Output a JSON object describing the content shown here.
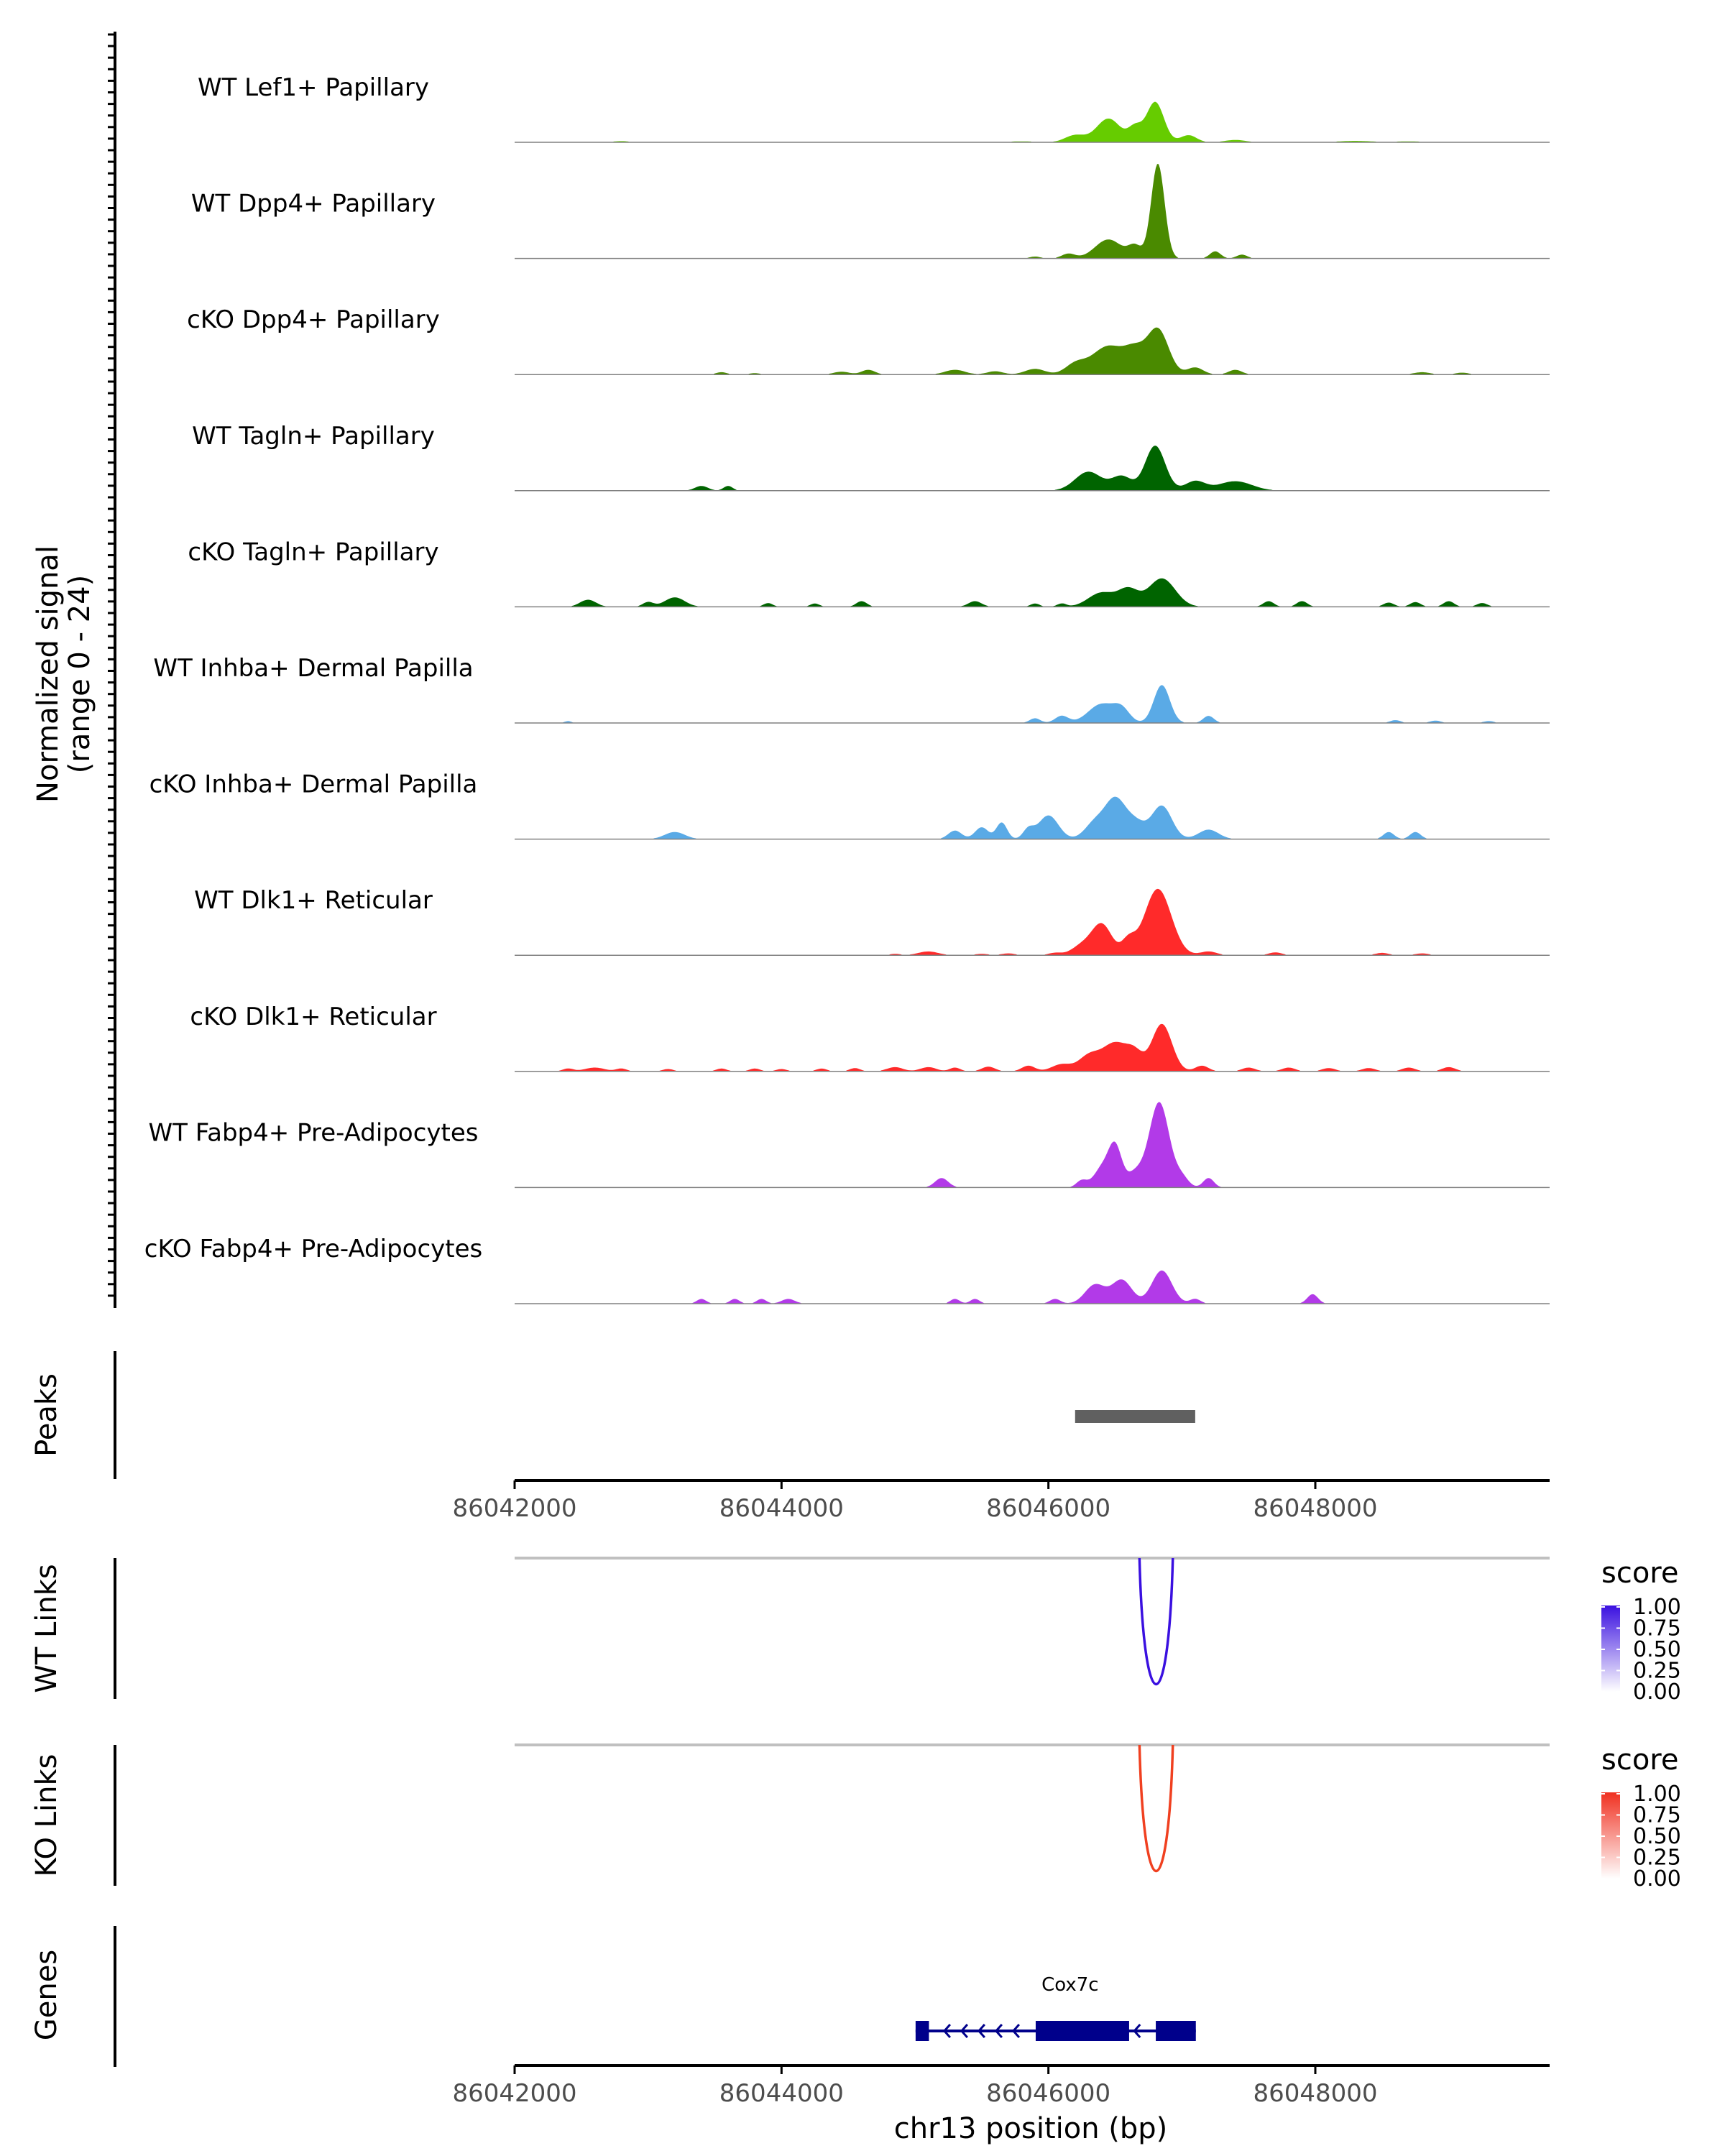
{
  "chart_data": {
    "type": "area",
    "chromosome": "chr13",
    "xlim": [
      86041950,
      86049700
    ],
    "xticks": [
      86042000,
      86044000,
      86046000,
      86048000
    ],
    "xtick_labels": [
      "86042000",
      "86044000",
      "86046000",
      "86048000"
    ],
    "xlabel": "chr13 position (bp)",
    "coverage": {
      "ylabel": "Normalized signal",
      "ylabel_range": "(range 0 - 24)",
      "ylim": [
        0,
        24
      ],
      "tracks": [
        {
          "label": "WT Lef1+ Papillary",
          "color": "#66cc00",
          "peaks": [
            [
              86042800,
              0.25,
              120
            ],
            [
              86043200,
              0.15,
              100
            ],
            [
              86045800,
              0.2,
              200
            ],
            [
              86046200,
              1.5,
              150
            ],
            [
              86046450,
              5,
              180
            ],
            [
              86046650,
              3,
              100
            ],
            [
              86046800,
              8.5,
              130
            ],
            [
              86047050,
              1.5,
              120
            ],
            [
              86047400,
              0.5,
              150
            ],
            [
              86048300,
              0.3,
              250
            ],
            [
              86048700,
              0.2,
              200
            ]
          ]
        },
        {
          "label": "WT Dpp4+ Papillary",
          "color": "#4a8a00",
          "peaks": [
            [
              86045900,
              0.4,
              80
            ],
            [
              86046150,
              1.0,
              100
            ],
            [
              86046450,
              4.0,
              200
            ],
            [
              86046650,
              2.5,
              100
            ],
            [
              86046820,
              20,
              100
            ],
            [
              86047250,
              1.5,
              80
            ],
            [
              86047450,
              0.8,
              80
            ]
          ]
        },
        {
          "label": "cKO Dpp4+ Papillary",
          "color": "#4a8a00",
          "peaks": [
            [
              86043550,
              0.5,
              80
            ],
            [
              86043800,
              0.3,
              80
            ],
            [
              86044450,
              0.6,
              120
            ],
            [
              86044650,
              1.0,
              100
            ],
            [
              86045300,
              1.0,
              150
            ],
            [
              86045600,
              0.7,
              120
            ],
            [
              86045900,
              1.2,
              150
            ],
            [
              86046200,
              2.0,
              150
            ],
            [
              86046450,
              6.0,
              250
            ],
            [
              86046650,
              4.0,
              150
            ],
            [
              86046820,
              9.5,
              160
            ],
            [
              86047100,
              1.5,
              120
            ],
            [
              86047400,
              1.0,
              100
            ],
            [
              86048800,
              0.5,
              120
            ],
            [
              86049100,
              0.4,
              100
            ]
          ]
        },
        {
          "label": "WT Tagln+ Papillary",
          "color": "#006400",
          "peaks": [
            [
              86043400,
              1.0,
              100
            ],
            [
              86043600,
              1.0,
              70
            ],
            [
              86046300,
              4.0,
              200
            ],
            [
              86046550,
              3.0,
              150
            ],
            [
              86046800,
              9.5,
              150
            ],
            [
              86047100,
              2.0,
              150
            ],
            [
              86047400,
              2.0,
              250
            ]
          ]
        },
        {
          "label": "cKO Tagln+ Papillary",
          "color": "#006400",
          "peaks": [
            [
              86042550,
              1.5,
              120
            ],
            [
              86043000,
              1.0,
              80
            ],
            [
              86043200,
              2.0,
              150
            ],
            [
              86043900,
              0.8,
              70
            ],
            [
              86044250,
              0.7,
              70
            ],
            [
              86044600,
              1.2,
              80
            ],
            [
              86045450,
              1.2,
              100
            ],
            [
              86045900,
              0.7,
              70
            ],
            [
              86046100,
              0.7,
              70
            ],
            [
              86046400,
              3.0,
              200
            ],
            [
              86046600,
              3.5,
              150
            ],
            [
              86046850,
              6.0,
              200
            ],
            [
              86047650,
              1.2,
              80
            ],
            [
              86047900,
              1.2,
              80
            ],
            [
              86048550,
              0.9,
              80
            ],
            [
              86048750,
              1.0,
              80
            ],
            [
              86049000,
              1.2,
              80
            ],
            [
              86049250,
              0.8,
              80
            ]
          ]
        },
        {
          "label": "WT Inhba+ Dermal Papilla",
          "color": "#5aaae6",
          "peaks": [
            [
              86042400,
              0.4,
              50
            ],
            [
              86045900,
              1.0,
              80
            ],
            [
              86046100,
              1.5,
              100
            ],
            [
              86046400,
              4.0,
              200
            ],
            [
              86046550,
              2.5,
              120
            ],
            [
              86046850,
              8.0,
              120
            ],
            [
              86047200,
              1.5,
              80
            ],
            [
              86048600,
              0.6,
              80
            ],
            [
              86048900,
              0.5,
              80
            ],
            [
              86049300,
              0.4,
              80
            ]
          ]
        },
        {
          "label": "cKO Inhba+ Dermal Papilla",
          "color": "#5aaae6",
          "peaks": [
            [
              86043200,
              1.5,
              150
            ],
            [
              86045300,
              1.8,
              100
            ],
            [
              86045500,
              2.5,
              100
            ],
            [
              86045650,
              3.5,
              80
            ],
            [
              86045850,
              2.0,
              80
            ],
            [
              86046000,
              5.0,
              150
            ],
            [
              86046350,
              3.5,
              150
            ],
            [
              86046500,
              8.0,
              150
            ],
            [
              86046650,
              3.5,
              150
            ],
            [
              86046850,
              7.0,
              150
            ],
            [
              86047200,
              2.0,
              150
            ],
            [
              86048550,
              1.5,
              80
            ],
            [
              86048750,
              1.5,
              80
            ]
          ]
        },
        {
          "label": "WT Dlk1+ Reticular",
          "color": "#ff2a2a",
          "peaks": [
            [
              86044850,
              0.3,
              80
            ],
            [
              86045100,
              0.8,
              150
            ],
            [
              86045500,
              0.3,
              100
            ],
            [
              86045700,
              0.4,
              100
            ],
            [
              86046050,
              0.5,
              100
            ],
            [
              86046250,
              2.0,
              150
            ],
            [
              86046400,
              6.5,
              150
            ],
            [
              86046600,
              3.0,
              100
            ],
            [
              86046820,
              14,
              200
            ],
            [
              86047200,
              0.8,
              120
            ],
            [
              86047700,
              0.6,
              100
            ],
            [
              86048500,
              0.5,
              100
            ],
            [
              86048800,
              0.4,
              100
            ]
          ]
        },
        {
          "label": "cKO Dlk1+ Reticular",
          "color": "#ff2a2a",
          "peaks": [
            [
              86042400,
              0.6,
              80
            ],
            [
              86042600,
              0.8,
              150
            ],
            [
              86042800,
              0.6,
              80
            ],
            [
              86043150,
              0.5,
              80
            ],
            [
              86043550,
              0.6,
              80
            ],
            [
              86043800,
              0.6,
              80
            ],
            [
              86044000,
              0.5,
              80
            ],
            [
              86044300,
              0.6,
              80
            ],
            [
              86044550,
              0.7,
              80
            ],
            [
              86044850,
              0.9,
              120
            ],
            [
              86045100,
              0.9,
              120
            ],
            [
              86045300,
              0.8,
              80
            ],
            [
              86045550,
              1.0,
              100
            ],
            [
              86045850,
              1.2,
              100
            ],
            [
              86046100,
              1.5,
              150
            ],
            [
              86046300,
              3.0,
              150
            ],
            [
              86046500,
              6.0,
              200
            ],
            [
              86046650,
              3.0,
              120
            ],
            [
              86046850,
              10,
              150
            ],
            [
              86047150,
              1.2,
              100
            ],
            [
              86047500,
              0.8,
              100
            ],
            [
              86047800,
              0.8,
              100
            ],
            [
              86048100,
              0.7,
              100
            ],
            [
              86048400,
              0.7,
              100
            ],
            [
              86048700,
              0.8,
              100
            ],
            [
              86049000,
              0.9,
              100
            ]
          ]
        },
        {
          "label": "WT Fabp4+ Pre-Adipocytes",
          "color": "#b23ae8",
          "peaks": [
            [
              86045200,
              2.0,
              100
            ],
            [
              86046250,
              1.5,
              80
            ],
            [
              86046400,
              4.0,
              120
            ],
            [
              86046500,
              8.5,
              100
            ],
            [
              86046650,
              3.0,
              120
            ],
            [
              86046830,
              18,
              150
            ],
            [
              86047000,
              2.0,
              100
            ],
            [
              86047200,
              2.0,
              80
            ]
          ]
        },
        {
          "label": "cKO Fabp4+ Pre-Adipocytes",
          "color": "#b23ae8",
          "peaks": [
            [
              86043400,
              1.0,
              70
            ],
            [
              86043650,
              1.0,
              70
            ],
            [
              86043850,
              1.0,
              70
            ],
            [
              86044050,
              1.0,
              100
            ],
            [
              86045300,
              1.0,
              70
            ],
            [
              86045450,
              1.0,
              70
            ],
            [
              86046050,
              1.0,
              80
            ],
            [
              86046350,
              4.0,
              150
            ],
            [
              86046550,
              5.0,
              150
            ],
            [
              86046850,
              7.0,
              150
            ],
            [
              86047100,
              1.0,
              80
            ],
            [
              86047980,
              2.0,
              80
            ]
          ]
        }
      ]
    },
    "peaks_track": {
      "label": "Peaks",
      "regions": [
        [
          86046200,
          86047100
        ]
      ]
    },
    "link_tracks": [
      {
        "label": "WT Links",
        "color": "#3a10e0",
        "links": [
          {
            "start": 86046650,
            "end": 86046900,
            "score": 1.0
          }
        ],
        "legend_title": "score",
        "legend_ticks": [
          "1.00",
          "0.75",
          "0.50",
          "0.25",
          "0.00"
        ],
        "legend_color": "#3a10e0"
      },
      {
        "label": "KO Links",
        "color": "#f04020",
        "links": [
          {
            "start": 86046650,
            "end": 86046900,
            "score": 0.95
          }
        ],
        "legend_title": "score",
        "legend_ticks": [
          "1.00",
          "0.75",
          "0.50",
          "0.25",
          "0.00"
        ],
        "legend_color": "#f03020"
      }
    ],
    "genes_track": {
      "label": "Genes",
      "genes": [
        {
          "name": "Cox7c",
          "strand": "-",
          "start": 86044800,
          "end": 86046900,
          "exons": [
            [
              86044800,
              86044900
            ],
            [
              86045700,
              86046400
            ],
            [
              86046600,
              86046900
            ]
          ]
        }
      ]
    }
  }
}
